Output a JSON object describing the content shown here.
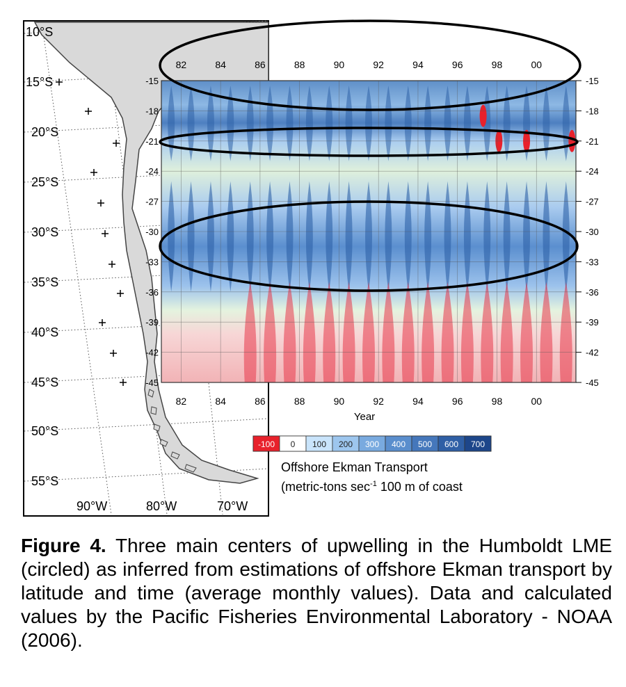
{
  "map": {
    "lat_labels": [
      "10°S",
      "15°S",
      "20°S",
      "25°S",
      "30°S",
      "35°S",
      "40°S",
      "45°S",
      "50°S",
      "55°S"
    ],
    "lon_labels": [
      "90°W",
      "80°W",
      "70°W"
    ],
    "land_color": "#d9d9d9"
  },
  "chart_data": {
    "type": "heatmap",
    "title": "",
    "xlabel": "Year",
    "ylabel": "",
    "x_tick_labels": [
      "82",
      "84",
      "86",
      "88",
      "90",
      "92",
      "94",
      "96",
      "98",
      "00"
    ],
    "x_range": [
      1981,
      2002
    ],
    "y_tick_labels": [
      "-15",
      "-18",
      "-21",
      "-24",
      "-27",
      "-30",
      "-33",
      "-36",
      "-39",
      "-42",
      "-45"
    ],
    "y_range": [
      -15,
      -45
    ],
    "grid": true,
    "colorbar": {
      "title_line1": "Offshore Ekman Transport",
      "title_line2": "(metric-tons sec",
      "title_sup": "-1",
      "title_line2_end": " 100 m of coast",
      "levels": [
        "-100",
        "0",
        "100",
        "200",
        "300",
        "400",
        "500",
        "600",
        "700"
      ],
      "colors": [
        "#e8212b",
        "#ffffff",
        "#c9e4fb",
        "#9dc6ee",
        "#79aadf",
        "#5a8ecd",
        "#4577bb",
        "#2f5fa5",
        "#1d468a"
      ]
    },
    "upwelling_band_latitudes": [
      -15,
      -21,
      -31
    ],
    "strong_downwelling_spots": [
      {
        "x": 1997.3,
        "lat": -18.5
      },
      {
        "x": 1998.1,
        "lat": -21
      },
      {
        "x": 1999.5,
        "lat": -21
      },
      {
        "x": 2001.8,
        "lat": -21
      }
    ]
  },
  "caption": {
    "label": "Figure 4.",
    "text": " Three main centers of upwelling in the Humboldt LME (circled) as inferred from estimations of offshore Ekman transport by latitude and time (average monthly values). Data and calculated values by the Pacific Fisheries Environmental Laboratory - NOAA (2006)."
  }
}
